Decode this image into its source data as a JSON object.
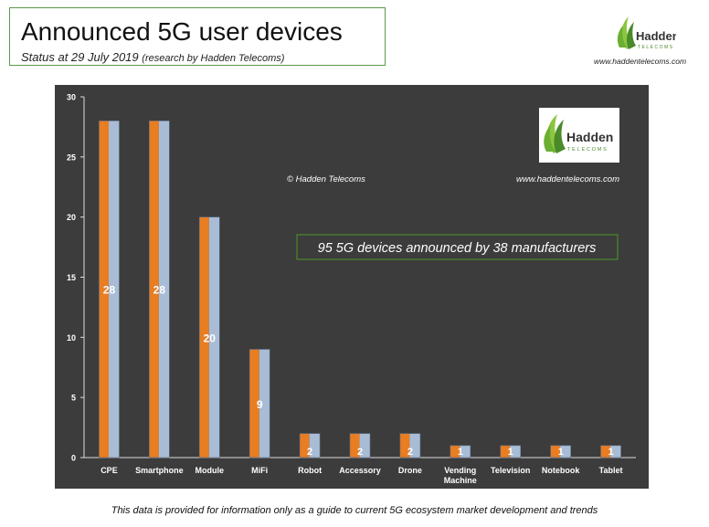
{
  "header": {
    "title": "Announced 5G user devices",
    "subtitle_main": "Status at 29 July 2019",
    "subtitle_note": "(research by Hadden Telecoms)"
  },
  "logo": {
    "name": "Hadden",
    "tagline": "TELECOMS",
    "url": "www.haddentelecoms.com",
    "colors": {
      "leaf_light": "#8cc63f",
      "leaf_dark": "#4a8a2a"
    }
  },
  "chart_data": {
    "type": "bar",
    "categories": [
      "CPE",
      "Smartphone",
      "Module",
      "MiFi",
      "Robot",
      "Accessory",
      "Drone",
      "Vending Machine",
      "Television",
      "Notebook",
      "Tablet"
    ],
    "values": [
      28,
      28,
      20,
      9,
      2,
      2,
      2,
      1,
      1,
      1,
      1
    ],
    "data_labels": [
      "28",
      "28",
      "20",
      "9",
      "2",
      "2",
      "2",
      "1",
      "1",
      "1",
      "1"
    ],
    "ylim": [
      0,
      30
    ],
    "yticks": [
      "0",
      "5",
      "10",
      "15",
      "20",
      "25",
      "30"
    ],
    "ytick_values": [
      0,
      5,
      10,
      15,
      20,
      25,
      30
    ],
    "grid": false,
    "copyright": "© Hadden Telecoms",
    "annotation": "95 5G devices announced by 38 manufacturers",
    "colors": {
      "background": "#3c3c3c",
      "bar_orange": "#e87d22",
      "bar_blue": "#a8bcd6",
      "annotation_border": "#4a8a2a"
    }
  },
  "footer": {
    "text": "This data is provided for information only as a guide to current 5G ecosystem market development and trends"
  }
}
